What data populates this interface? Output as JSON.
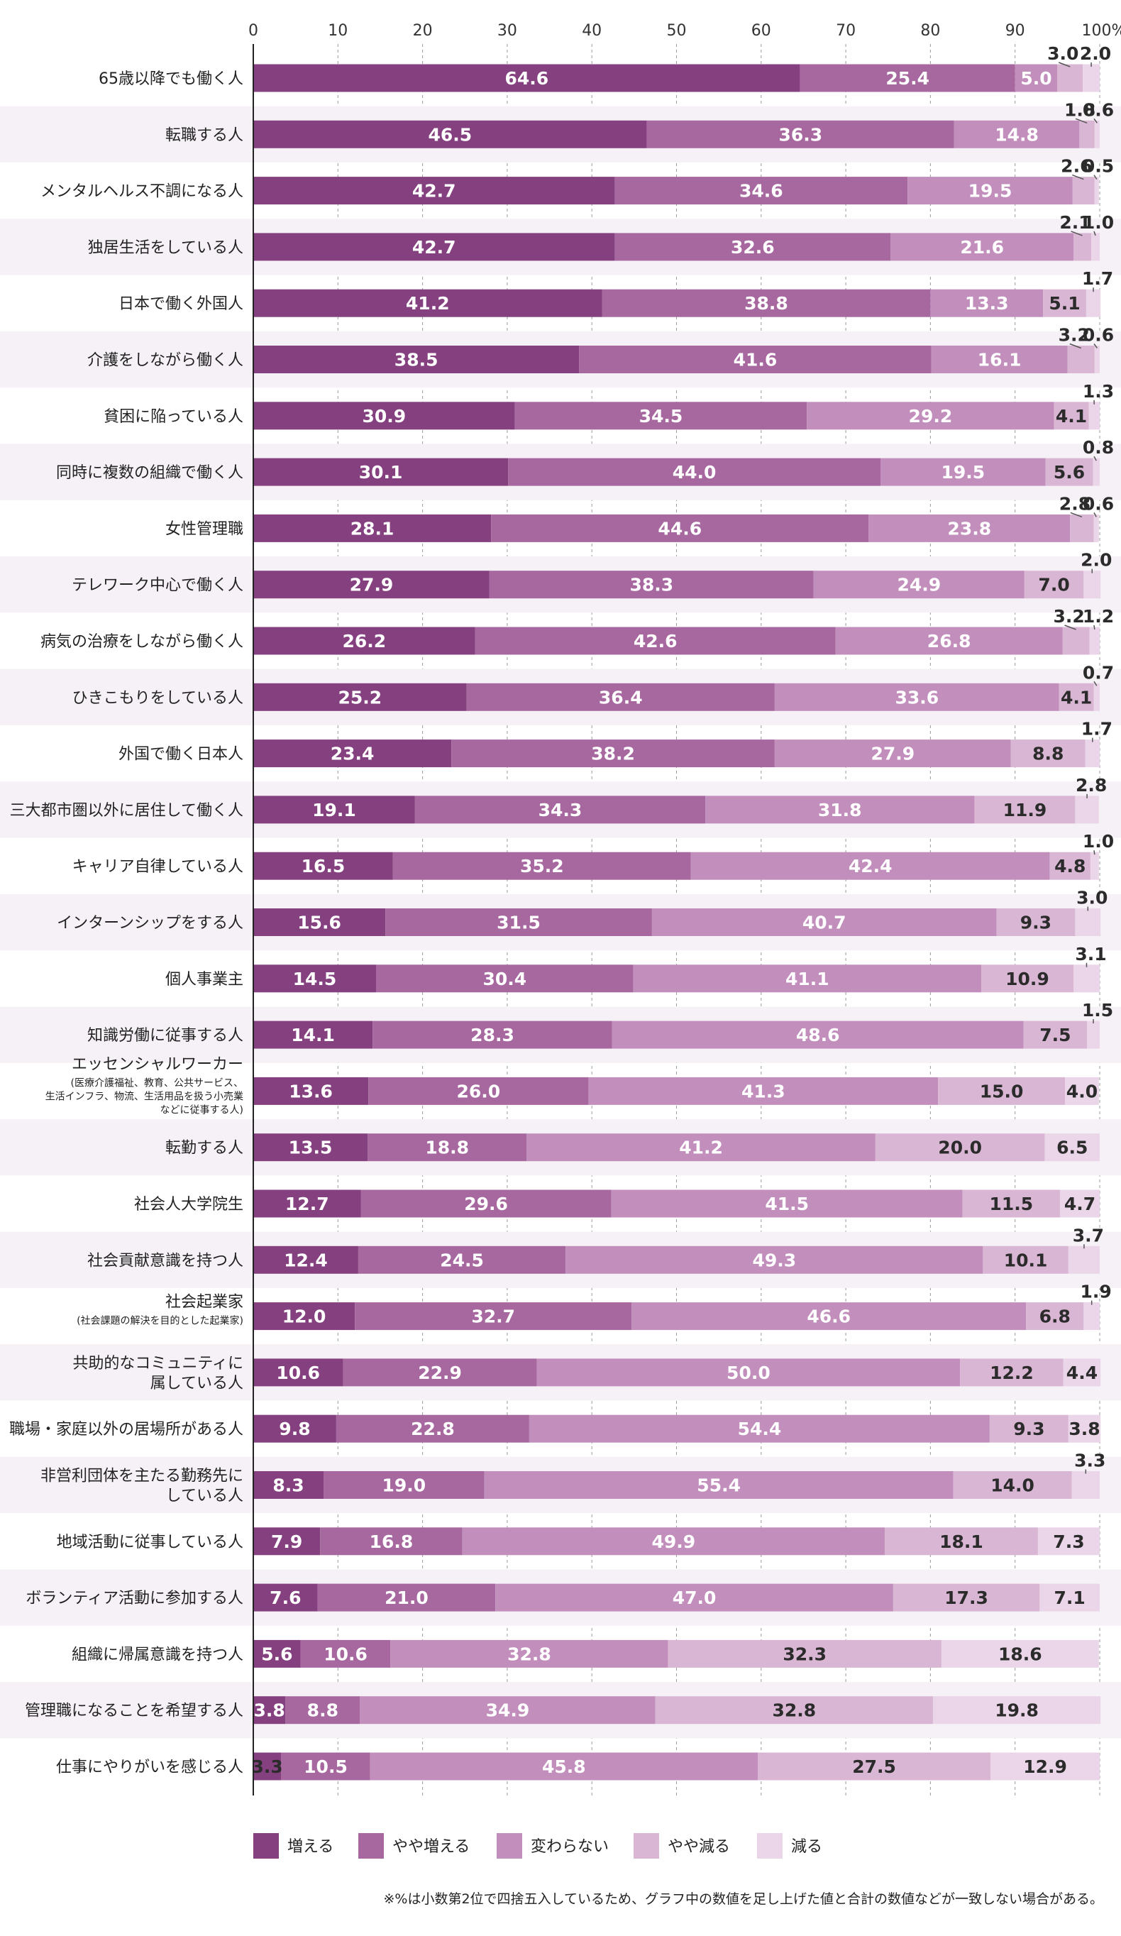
{
  "chart_data": {
    "type": "bar",
    "orientation": "horizontal",
    "stacked": true,
    "x_ticks": [
      "0",
      "10",
      "20",
      "30",
      "40",
      "50",
      "60",
      "70",
      "80",
      "90",
      "100%"
    ],
    "xlim": [
      0,
      100
    ],
    "grid": true,
    "legend_position": "bottom",
    "categories": [
      {
        "label": "65歳以降でも働く人"
      },
      {
        "label": "転職する人"
      },
      {
        "label": "メンタルヘルス不調になる人"
      },
      {
        "label": "独居生活をしている人"
      },
      {
        "label": "日本で働く外国人"
      },
      {
        "label": "介護をしながら働く人"
      },
      {
        "label": "貧困に陥っている人"
      },
      {
        "label": "同時に複数の組織で働く人"
      },
      {
        "label": "女性管理職"
      },
      {
        "label": "テレワーク中心で働く人"
      },
      {
        "label": "病気の治療をしながら働く人"
      },
      {
        "label": "ひきこもりをしている人"
      },
      {
        "label": "外国で働く日本人"
      },
      {
        "label": "三大都市圏以外に居住して働く人"
      },
      {
        "label": "キャリア自律している人"
      },
      {
        "label": "インターンシップをする人"
      },
      {
        "label": "個人事業主"
      },
      {
        "label": "知識労働に従事する人"
      },
      {
        "label": "エッセンシャルワーカー",
        "sub": [
          "(医療介護福祉、教育、公共サービス、",
          "生活インフラ、物流、生活用品を扱う小売業",
          "などに従事する人)"
        ]
      },
      {
        "label": "転勤する人"
      },
      {
        "label": "社会人大学院生"
      },
      {
        "label": "社会貢献意識を持つ人"
      },
      {
        "label": "社会起業家",
        "sub": [
          "(社会課題の解決を目的とした起業家)"
        ]
      },
      {
        "label": "共助的なコミュニティに",
        "label2": "属している人"
      },
      {
        "label": "職場・家庭以外の居場所がある人"
      },
      {
        "label": "非営利団体を主たる勤務先に",
        "label2": "している人"
      },
      {
        "label": "地域活動に従事している人"
      },
      {
        "label": "ボランティア活動に参加する人"
      },
      {
        "label": "組織に帰属意識を持つ人"
      },
      {
        "label": "管理職になることを希望する人"
      },
      {
        "label": "仕事にやりがいを感じる人"
      }
    ],
    "series": [
      {
        "name": "増える",
        "color": "#85407f",
        "values": [
          64.6,
          46.5,
          42.7,
          42.7,
          41.2,
          38.5,
          30.9,
          30.1,
          28.1,
          27.9,
          26.2,
          25.2,
          23.4,
          19.1,
          16.5,
          15.6,
          14.5,
          14.1,
          13.6,
          13.5,
          12.7,
          12.4,
          12.0,
          10.6,
          9.8,
          8.3,
          7.9,
          7.6,
          5.6,
          3.8,
          3.3
        ]
      },
      {
        "name": "やや増える",
        "color": "#a7689f",
        "values": [
          25.4,
          36.3,
          34.6,
          32.6,
          38.8,
          41.6,
          34.5,
          44.0,
          44.6,
          38.3,
          42.6,
          36.4,
          38.2,
          34.3,
          35.2,
          31.5,
          30.4,
          28.3,
          26.0,
          18.8,
          29.6,
          24.5,
          32.7,
          22.9,
          22.8,
          19.0,
          16.8,
          21.0,
          10.6,
          8.8,
          10.5
        ]
      },
      {
        "name": "変わらない",
        "color": "#c28fbd",
        "values": [
          5.0,
          14.8,
          19.5,
          21.6,
          13.3,
          16.1,
          29.2,
          19.5,
          23.8,
          24.9,
          26.8,
          33.6,
          27.9,
          31.8,
          42.4,
          40.7,
          41.1,
          48.6,
          41.3,
          41.2,
          41.5,
          49.3,
          46.6,
          50.0,
          54.4,
          55.4,
          49.9,
          47.0,
          32.8,
          34.9,
          45.8
        ]
      },
      {
        "name": "やや減る",
        "color": "#d9b6d4",
        "values": [
          3.0,
          1.8,
          2.6,
          2.1,
          5.1,
          3.2,
          4.1,
          5.6,
          2.8,
          7.0,
          3.2,
          4.1,
          8.8,
          11.9,
          4.8,
          9.3,
          10.9,
          7.5,
          15.0,
          20.0,
          11.5,
          10.1,
          6.8,
          12.2,
          9.3,
          14.0,
          18.1,
          17.3,
          32.3,
          32.8,
          27.5
        ]
      },
      {
        "name": "減る",
        "color": "#ead6e8",
        "values": [
          2.0,
          0.6,
          0.5,
          1.0,
          1.7,
          0.6,
          1.3,
          0.8,
          0.6,
          2.0,
          1.2,
          0.7,
          1.7,
          2.8,
          1.0,
          3.0,
          3.1,
          1.5,
          4.0,
          6.5,
          4.7,
          3.7,
          1.9,
          4.4,
          3.8,
          3.3,
          7.3,
          7.1,
          18.6,
          19.8,
          12.9
        ]
      }
    ],
    "note": "※%は小数第2位で四捨五入しているため、グラフ中の数値を足し上げた値と合計の数値などが一致しない場合がある。"
  }
}
